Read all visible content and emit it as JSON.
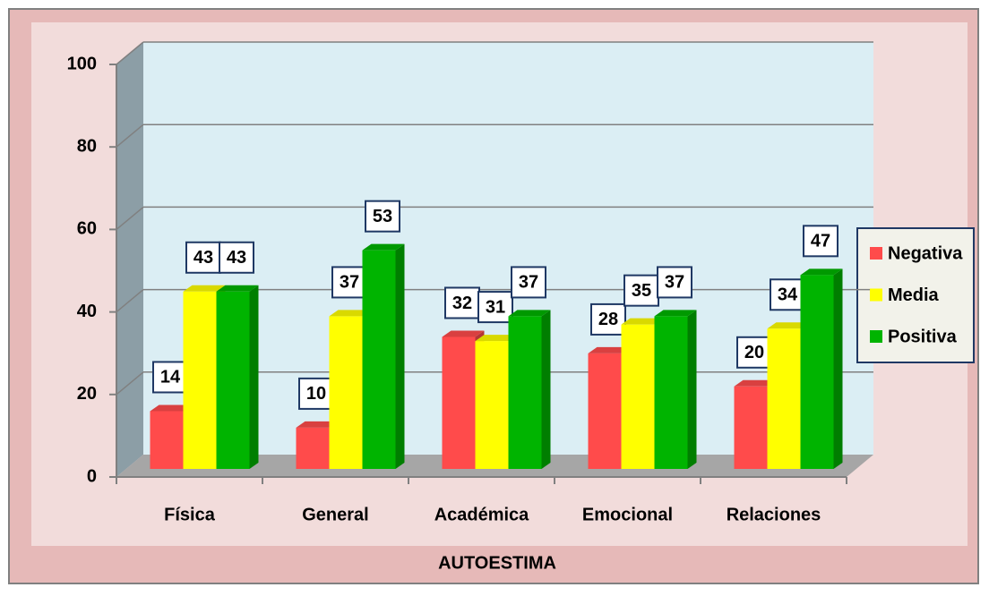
{
  "chart_data": {
    "type": "bar",
    "x_label": "AUTOESTIMA",
    "categories": [
      "Física",
      "General",
      "Académica",
      "Emocional",
      "Relaciones"
    ],
    "series": [
      {
        "name": "Negativa",
        "color": "#ff4b4b",
        "values": [
          14,
          10,
          32,
          28,
          20
        ]
      },
      {
        "name": "Media",
        "color": "#ffff00",
        "values": [
          43,
          37,
          31,
          35,
          34
        ]
      },
      {
        "name": "Positiva",
        "color": "#00b400",
        "values": [
          43,
          53,
          37,
          37,
          47
        ]
      }
    ],
    "ylim": [
      0,
      100
    ],
    "yticks": [
      0,
      20,
      40,
      60,
      80,
      100
    ],
    "grid": true,
    "legend": "right"
  }
}
